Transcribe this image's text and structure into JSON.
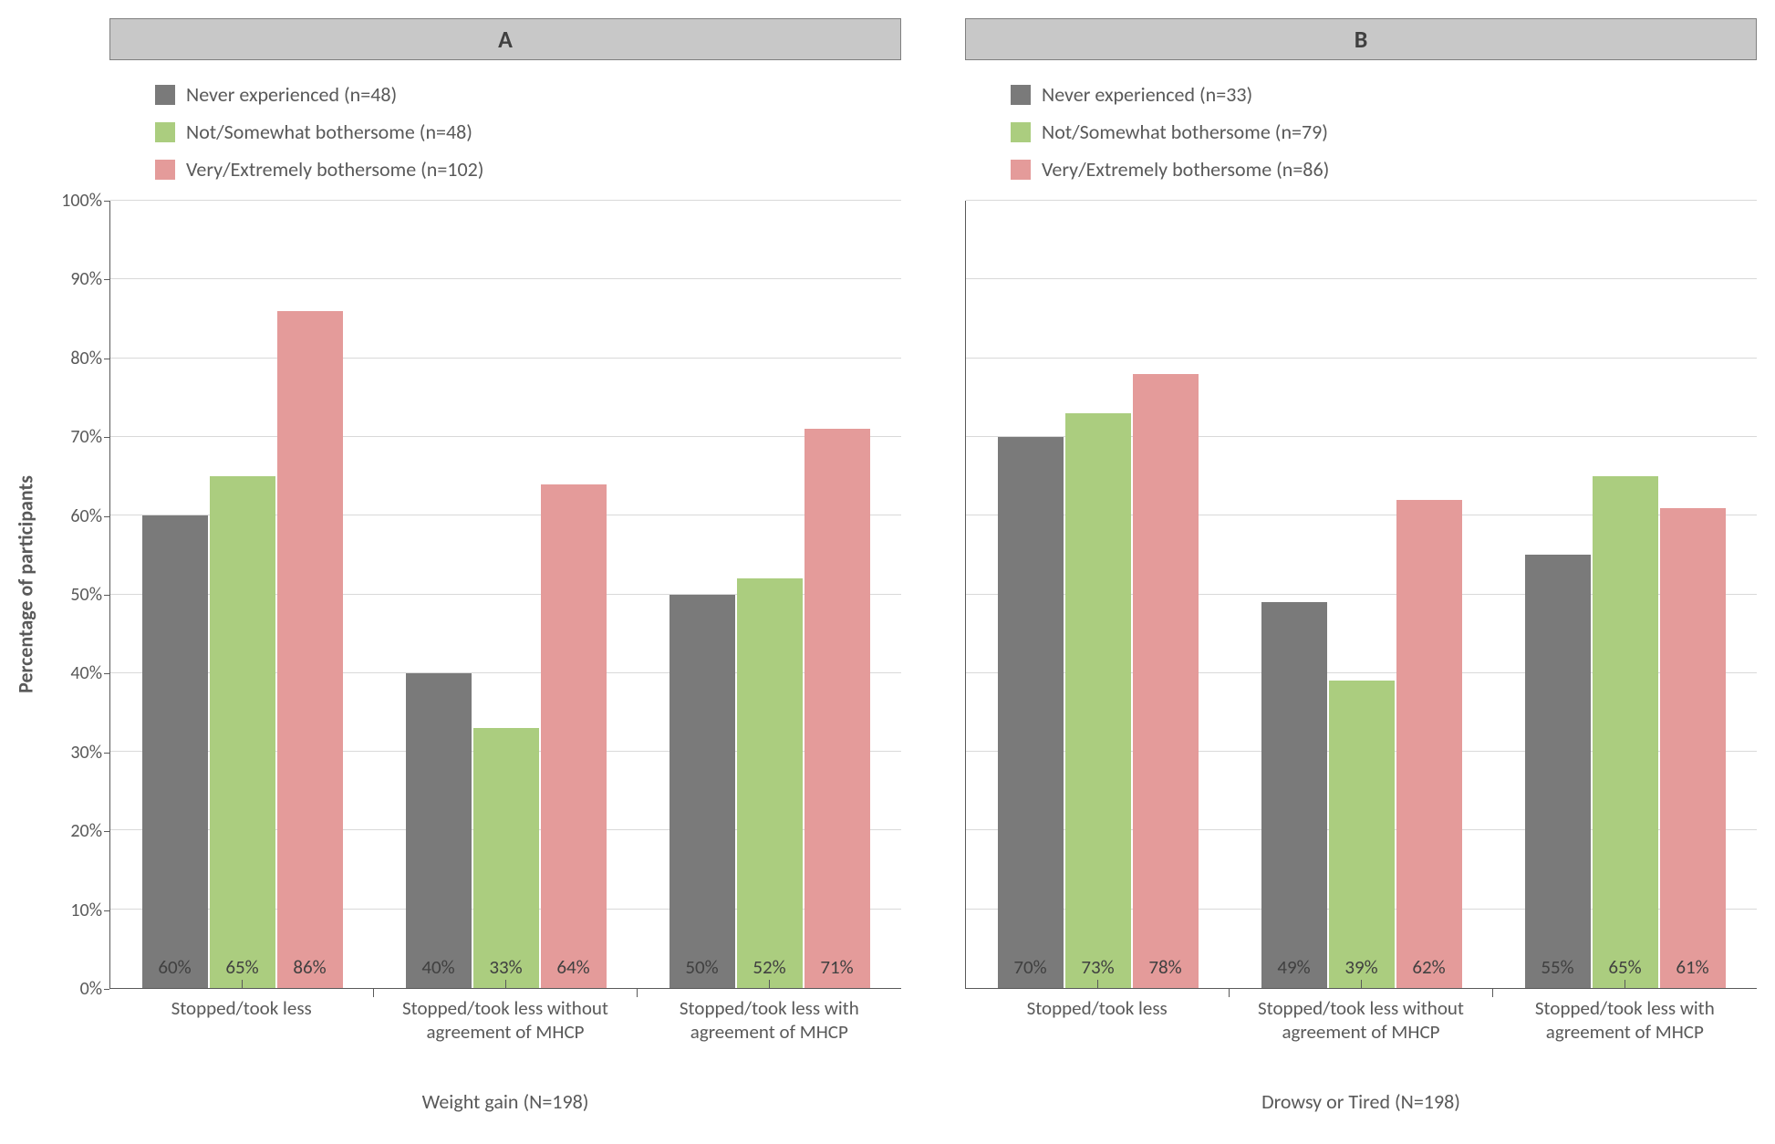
{
  "chart": {
    "type": "bar",
    "y_axis": {
      "label": "Percentage of participants",
      "min": 0,
      "max": 100,
      "tick_step": 10,
      "tick_suffix": "%",
      "label_fontsize": 22,
      "tick_fontsize": 20
    },
    "colors": {
      "series1": "#7a7a7a",
      "series2": "#abcd7f",
      "series3": "#e49b9a",
      "grid": "#d9d9d9",
      "axis": "#595959",
      "header_bg": "#c8c8c8",
      "header_border": "#808080",
      "text": "#595959",
      "bar_label": "#404040",
      "background": "#ffffff"
    },
    "series_keys": [
      "series1",
      "series2",
      "series3"
    ],
    "categories": [
      "Stopped/took less",
      "Stopped/took less without agreement of MHCP",
      "Stopped/took less with agreement of MHCP"
    ],
    "panels": [
      {
        "header": "A",
        "title": "Weight gain (N=198)",
        "legend": {
          "series1": "Never experienced (n=48)",
          "series2": "Not/Somewhat bothersome (n=48)",
          "series3": "Very/Extremely bothersome (n=102)"
        },
        "data": {
          "series1": [
            60,
            40,
            50
          ],
          "series2": [
            65,
            33,
            52
          ],
          "series3": [
            86,
            64,
            71
          ]
        }
      },
      {
        "header": "B",
        "title": "Drowsy or Tired (N=198)",
        "legend": {
          "series1": "Never experienced (n=33)",
          "series2": "Not/Somewhat bothersome (n=79)",
          "series3": "Very/Extremely bothersome (n=86)"
        },
        "data": {
          "series1": [
            70,
            49,
            55
          ],
          "series2": [
            73,
            39,
            65
          ],
          "series3": [
            78,
            62,
            61
          ]
        }
      }
    ],
    "fonts": {
      "family": "Calibri, Arial, sans-serif",
      "header_fontsize": 26,
      "legend_fontsize": 22,
      "category_fontsize": 21,
      "bar_label_fontsize": 21,
      "panel_title_fontsize": 22
    }
  }
}
